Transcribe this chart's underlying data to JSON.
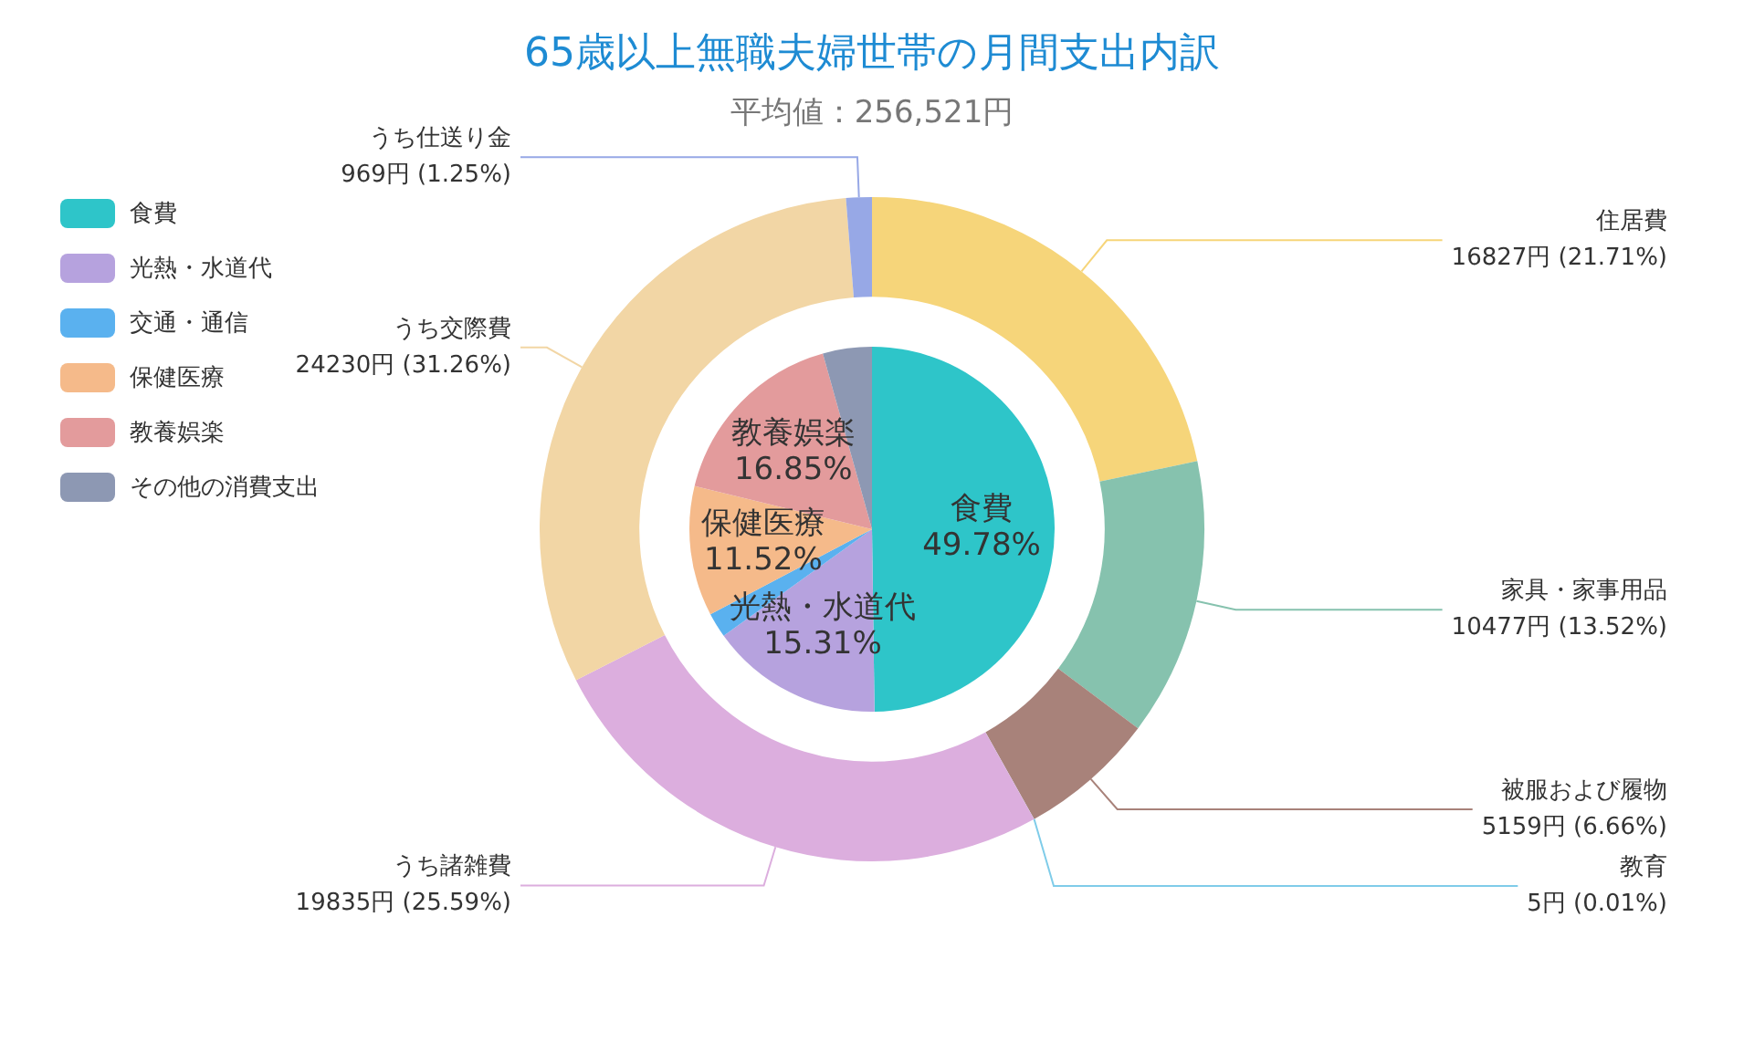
{
  "chart_data": [
    {
      "type": "pie",
      "title": "65歳以上無職夫婦世帯の月間支出内訳",
      "subtitle": "平均値：256,521円",
      "categories": [
        "食費",
        "光熱・水道代",
        "交通・通信",
        "保健医療",
        "教養娯楽",
        "その他の消費支出"
      ],
      "values": [
        49.78,
        15.31,
        2.2,
        11.52,
        16.85,
        4.34
      ],
      "value_labels": [
        "49.78%",
        "15.31%",
        null,
        "11.52%",
        "16.85%",
        null
      ],
      "colors": [
        "#2ec5c9",
        "#b6a2de",
        "#5ab1ef",
        "#f5ba8a",
        "#e39b9c",
        "#8d98b3"
      ],
      "legend": "left"
    },
    {
      "type": "donut",
      "categories": [
        "住居費",
        "家具・家事用品",
        "被服および履物",
        "教育",
        "うち諸雑費",
        "うち交際費",
        "うち仕送り金"
      ],
      "values": [
        16827,
        10477,
        5159,
        5,
        19835,
        24230,
        969
      ],
      "value_labels": [
        "16827円 (21.71%)",
        "10477円 (13.52%)",
        "5159円 (6.66%)",
        "5円 (0.01%)",
        "19835円 (25.59%)",
        "24230円 (31.26%)",
        "969円 (1.25%)"
      ],
      "colors": [
        "#f6d57a",
        "#86c2ae",
        "#a8827a",
        "#7fcce9",
        "#dcaede",
        "#f2d6a5",
        "#97a8e6"
      ]
    }
  ]
}
